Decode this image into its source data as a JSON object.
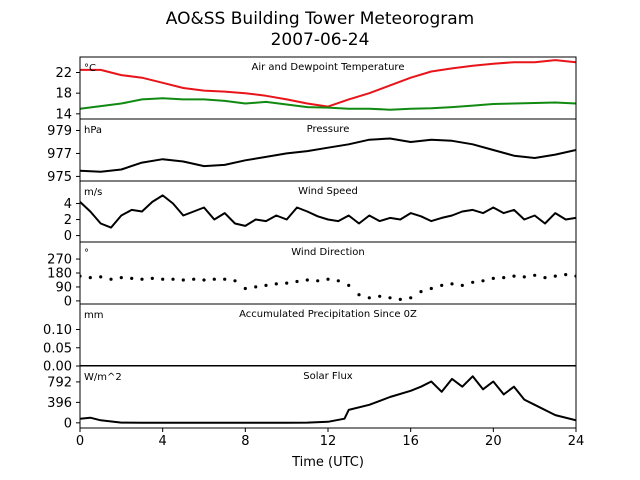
{
  "chart_data": {
    "type": "line",
    "title": "AO&SS Building Tower Meteorogram",
    "subtitle": "2007-06-24",
    "xlabel": "Time (UTC)",
    "x_ticks": [
      0,
      4,
      8,
      12,
      16,
      20,
      24
    ],
    "x_range": [
      0,
      24
    ],
    "panels": [
      {
        "id": "temperature",
        "title": "Air and Dewpoint Temperature",
        "unit": "°C",
        "ylim": [
          13,
          25
        ],
        "yticks": [
          14,
          18,
          22
        ],
        "series": [
          {
            "color": "#e8141a",
            "points": [
              [
                0,
                22.5
              ],
              [
                1,
                22.5
              ],
              [
                2,
                21.5
              ],
              [
                3,
                21
              ],
              [
                4,
                20
              ],
              [
                5,
                19
              ],
              [
                6,
                18.5
              ],
              [
                7,
                18.3
              ],
              [
                8,
                18
              ],
              [
                9,
                17.5
              ],
              [
                10,
                16.8
              ],
              [
                11,
                16
              ],
              [
                12,
                15.4
              ],
              [
                13,
                16.8
              ],
              [
                14,
                18
              ],
              [
                15,
                19.5
              ],
              [
                16,
                21
              ],
              [
                17,
                22.2
              ],
              [
                18,
                22.8
              ],
              [
                19,
                23.3
              ],
              [
                20,
                23.7
              ],
              [
                21,
                24
              ],
              [
                22,
                24
              ],
              [
                23,
                24.4
              ],
              [
                24,
                24
              ]
            ]
          },
          {
            "color": "#118a11",
            "points": [
              [
                0,
                15
              ],
              [
                1,
                15.5
              ],
              [
                2,
                16
              ],
              [
                3,
                16.8
              ],
              [
                4,
                17
              ],
              [
                5,
                16.8
              ],
              [
                6,
                16.8
              ],
              [
                7,
                16.5
              ],
              [
                8,
                16
              ],
              [
                9,
                16.3
              ],
              [
                10,
                15.8
              ],
              [
                11,
                15.3
              ],
              [
                12,
                15.2
              ],
              [
                13,
                15
              ],
              [
                14,
                15
              ],
              [
                15,
                14.8
              ],
              [
                16,
                15
              ],
              [
                17,
                15.1
              ],
              [
                18,
                15.3
              ],
              [
                19,
                15.6
              ],
              [
                20,
                15.9
              ],
              [
                21,
                16
              ],
              [
                22,
                16.1
              ],
              [
                23,
                16.2
              ],
              [
                24,
                16
              ]
            ]
          }
        ]
      },
      {
        "id": "pressure",
        "title": "Pressure",
        "unit": "hPa",
        "ylim": [
          974.6,
          980
        ],
        "yticks": [
          975,
          977,
          979
        ],
        "series": [
          {
            "color": "#000000",
            "points": [
              [
                0,
                975.5
              ],
              [
                1,
                975.4
              ],
              [
                2,
                975.6
              ],
              [
                3,
                976.2
              ],
              [
                4,
                976.5
              ],
              [
                5,
                976.3
              ],
              [
                6,
                975.9
              ],
              [
                7,
                976.0
              ],
              [
                8,
                976.4
              ],
              [
                9,
                976.7
              ],
              [
                10,
                977.0
              ],
              [
                11,
                977.2
              ],
              [
                12,
                977.5
              ],
              [
                13,
                977.8
              ],
              [
                14,
                978.2
              ],
              [
                15,
                978.3
              ],
              [
                16,
                978.0
              ],
              [
                17,
                978.2
              ],
              [
                18,
                978.1
              ],
              [
                19,
                977.8
              ],
              [
                20,
                977.3
              ],
              [
                21,
                976.8
              ],
              [
                22,
                976.6
              ],
              [
                23,
                976.9
              ],
              [
                24,
                977.3
              ]
            ]
          }
        ]
      },
      {
        "id": "wind-speed",
        "title": "Wind Speed",
        "unit": "m/s",
        "ylim": [
          -0.8,
          6.8
        ],
        "yticks": [
          0,
          2,
          4
        ],
        "series": [
          {
            "color": "#000000",
            "points": [
              [
                0,
                4.2
              ],
              [
                0.5,
                3
              ],
              [
                1,
                1.5
              ],
              [
                1.5,
                1
              ],
              [
                2,
                2.5
              ],
              [
                2.5,
                3.2
              ],
              [
                3,
                3
              ],
              [
                3.5,
                4.2
              ],
              [
                4,
                5
              ],
              [
                4.5,
                4
              ],
              [
                5,
                2.5
              ],
              [
                5.5,
                3
              ],
              [
                6,
                3.5
              ],
              [
                6.5,
                2
              ],
              [
                7,
                2.8
              ],
              [
                7.5,
                1.5
              ],
              [
                8,
                1.2
              ],
              [
                8.5,
                2
              ],
              [
                9,
                1.8
              ],
              [
                9.5,
                2.5
              ],
              [
                10,
                2
              ],
              [
                10.5,
                3.5
              ],
              [
                11,
                3
              ],
              [
                11.5,
                2.4
              ],
              [
                12,
                2
              ],
              [
                12.5,
                1.8
              ],
              [
                13,
                2.5
              ],
              [
                13.5,
                1.5
              ],
              [
                14,
                2.5
              ],
              [
                14.5,
                1.8
              ],
              [
                15,
                2.2
              ],
              [
                15.5,
                2
              ],
              [
                16,
                2.8
              ],
              [
                16.5,
                2.4
              ],
              [
                17,
                1.8
              ],
              [
                17.5,
                2.2
              ],
              [
                18,
                2.5
              ],
              [
                18.5,
                3
              ],
              [
                19,
                3.2
              ],
              [
                19.5,
                2.8
              ],
              [
                20,
                3.5
              ],
              [
                20.5,
                2.8
              ],
              [
                21,
                3.2
              ],
              [
                21.5,
                2
              ],
              [
                22,
                2.5
              ],
              [
                22.5,
                1.5
              ],
              [
                23,
                2.8
              ],
              [
                23.5,
                2
              ],
              [
                24,
                2.2
              ]
            ]
          }
        ]
      },
      {
        "id": "wind-direction",
        "title": "Wind Direction",
        "unit": "°",
        "ylim": [
          -20,
          380
        ],
        "yticks": [
          0,
          90,
          180,
          270
        ],
        "series": [
          {
            "color": "#000000",
            "style": "points",
            "points": [
              [
                0,
                160
              ],
              [
                0.5,
                150
              ],
              [
                1,
                155
              ],
              [
                1.5,
                140
              ],
              [
                2,
                150
              ],
              [
                2.5,
                145
              ],
              [
                3,
                140
              ],
              [
                3.5,
                145
              ],
              [
                4,
                140
              ],
              [
                4.5,
                140
              ],
              [
                5,
                135
              ],
              [
                5.5,
                140
              ],
              [
                6,
                135
              ],
              [
                6.5,
                140
              ],
              [
                7,
                140
              ],
              [
                7.5,
                130
              ],
              [
                8,
                80
              ],
              [
                8.5,
                90
              ],
              [
                9,
                100
              ],
              [
                9.5,
                110
              ],
              [
                10,
                115
              ],
              [
                10.5,
                125
              ],
              [
                11,
                135
              ],
              [
                11.5,
                130
              ],
              [
                12,
                140
              ],
              [
                12.5,
                130
              ],
              [
                13,
                100
              ],
              [
                13.5,
                40
              ],
              [
                14,
                20
              ],
              [
                14.5,
                30
              ],
              [
                15,
                20
              ],
              [
                15.5,
                10
              ],
              [
                16,
                20
              ],
              [
                16.5,
                60
              ],
              [
                17,
                80
              ],
              [
                17.5,
                100
              ],
              [
                18,
                110
              ],
              [
                18.5,
                100
              ],
              [
                19,
                120
              ],
              [
                19.5,
                130
              ],
              [
                20,
                145
              ],
              [
                20.5,
                150
              ],
              [
                21,
                160
              ],
              [
                21.5,
                155
              ],
              [
                22,
                165
              ],
              [
                22.5,
                150
              ],
              [
                23,
                160
              ],
              [
                23.5,
                170
              ],
              [
                24,
                160
              ]
            ]
          }
        ]
      },
      {
        "id": "precipitation",
        "title": "Accumulated Precipitation Since 0Z",
        "unit": "mm",
        "ylim": [
          0,
          0.17
        ],
        "yticks": [
          0.0,
          0.05,
          0.1
        ],
        "ytick_labels": [
          "0.00",
          "0.05",
          "0.10"
        ],
        "series": [
          {
            "color": "#000000",
            "points": [
              [
                0,
                0
              ],
              [
                24,
                0
              ]
            ]
          }
        ]
      },
      {
        "id": "solar-flux",
        "title": "Solar Flux",
        "unit": "W/m^2",
        "ylim": [
          -100,
          1100
        ],
        "yticks": [
          0,
          396,
          792
        ],
        "series": [
          {
            "color": "#000000",
            "points": [
              [
                0,
                80
              ],
              [
                0.5,
                100
              ],
              [
                1,
                50
              ],
              [
                2,
                5
              ],
              [
                3,
                0
              ],
              [
                4,
                0
              ],
              [
                6,
                0
              ],
              [
                8,
                0
              ],
              [
                10,
                0
              ],
              [
                11,
                5
              ],
              [
                12,
                20
              ],
              [
                12.8,
                80
              ],
              [
                13,
                250
              ],
              [
                14,
                350
              ],
              [
                15,
                500
              ],
              [
                16,
                620
              ],
              [
                16.5,
                700
              ],
              [
                17,
                800
              ],
              [
                17.5,
                600
              ],
              [
                18,
                850
              ],
              [
                18.5,
                700
              ],
              [
                19,
                900
              ],
              [
                19.5,
                650
              ],
              [
                20,
                800
              ],
              [
                20.5,
                550
              ],
              [
                21,
                700
              ],
              [
                21.5,
                450
              ],
              [
                22,
                350
              ],
              [
                23,
                150
              ],
              [
                24,
                50
              ]
            ]
          }
        ]
      }
    ]
  }
}
